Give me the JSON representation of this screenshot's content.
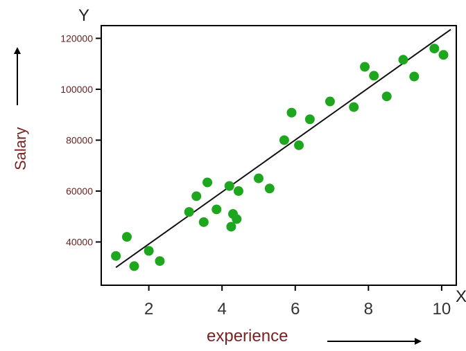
{
  "chart_data": {
    "type": "scatter",
    "title": "",
    "xlabel": "experience",
    "ylabel": "Salary",
    "x_axis_letter": "X",
    "y_axis_letter": "Y",
    "xlim": [
      0.7,
      10.4
    ],
    "ylim": [
      23000,
      125000
    ],
    "xticks": [
      2,
      4,
      6,
      8,
      10
    ],
    "yticks": [
      40000,
      60000,
      80000,
      100000,
      120000
    ],
    "grid": false,
    "legend": "none",
    "point_color": "#1fa61f",
    "line_color": "#111111",
    "points": [
      {
        "x": 1.1,
        "y": 34500
      },
      {
        "x": 1.4,
        "y": 42000
      },
      {
        "x": 1.6,
        "y": 30500
      },
      {
        "x": 2.0,
        "y": 36500
      },
      {
        "x": 2.3,
        "y": 32500
      },
      {
        "x": 3.1,
        "y": 51800
      },
      {
        "x": 3.3,
        "y": 58000
      },
      {
        "x": 3.5,
        "y": 47800
      },
      {
        "x": 3.6,
        "y": 63400
      },
      {
        "x": 3.85,
        "y": 52800
      },
      {
        "x": 4.2,
        "y": 62000
      },
      {
        "x": 4.3,
        "y": 51000
      },
      {
        "x": 4.25,
        "y": 46000
      },
      {
        "x": 4.45,
        "y": 60000
      },
      {
        "x": 4.4,
        "y": 49000
      },
      {
        "x": 5.0,
        "y": 65000
      },
      {
        "x": 5.3,
        "y": 61000
      },
      {
        "x": 5.7,
        "y": 80000
      },
      {
        "x": 5.9,
        "y": 90800
      },
      {
        "x": 6.1,
        "y": 78000
      },
      {
        "x": 6.4,
        "y": 88200
      },
      {
        "x": 6.95,
        "y": 95200
      },
      {
        "x": 7.6,
        "y": 93000
      },
      {
        "x": 7.9,
        "y": 108800
      },
      {
        "x": 8.15,
        "y": 105300
      },
      {
        "x": 8.5,
        "y": 97200
      },
      {
        "x": 8.95,
        "y": 111600
      },
      {
        "x": 9.25,
        "y": 105000
      },
      {
        "x": 9.8,
        "y": 116000
      },
      {
        "x": 10.05,
        "y": 113500
      }
    ],
    "fit_line": {
      "x": [
        1.1,
        10.25
      ],
      "y": [
        30000,
        123500
      ]
    }
  }
}
